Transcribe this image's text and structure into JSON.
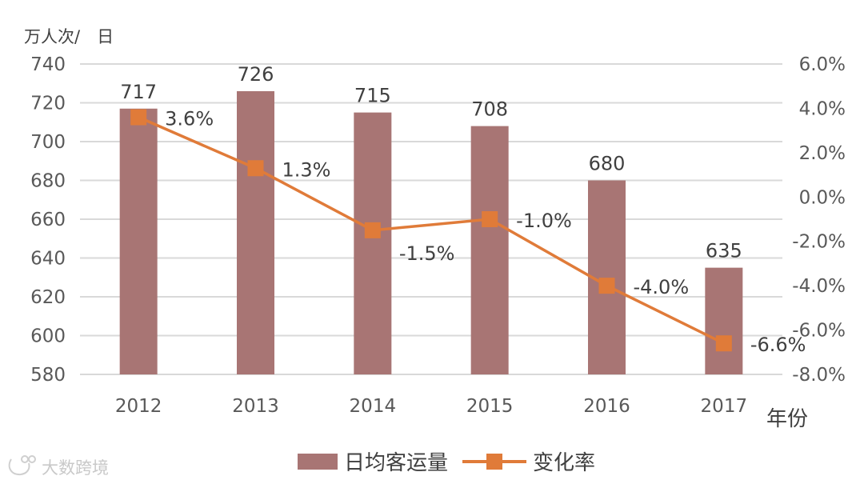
{
  "chart_data": {
    "type": "bar+line",
    "categories": [
      "2012",
      "2013",
      "2014",
      "2015",
      "2016",
      "2017"
    ],
    "series": [
      {
        "name": "日均客运量",
        "type": "bar",
        "axis": "left",
        "values": [
          717,
          726,
          715,
          708,
          680,
          635
        ],
        "labels": [
          "717",
          "726",
          "715",
          "708",
          "680",
          "635"
        ],
        "color": "#a87574"
      },
      {
        "name": "变化率",
        "type": "line",
        "axis": "right",
        "values": [
          3.6,
          1.3,
          -1.5,
          -1.0,
          -4.0,
          -6.6
        ],
        "labels": [
          "3.6%",
          "1.3%",
          "-1.5%",
          "-1.0%",
          "-4.0%",
          "-6.6%"
        ],
        "color": "#e07b39"
      }
    ],
    "ylabel": "万人次/　日",
    "xlabel": "年份",
    "ylim": [
      580,
      740
    ],
    "yticks": [
      580,
      600,
      620,
      640,
      660,
      680,
      700,
      720,
      740
    ],
    "ytick_labels": [
      "580",
      "600",
      "620",
      "640",
      "660",
      "680",
      "700",
      "720",
      "740"
    ],
    "y2lim": [
      -8.0,
      6.0
    ],
    "y2ticks": [
      -8,
      -6,
      -4,
      -2,
      0,
      2,
      4,
      6
    ],
    "y2tick_labels": [
      "-8.0%",
      "-6.0%",
      "-4.0%",
      "-2.0%",
      "0.0%",
      "2.0%",
      "4.0%",
      "6.0%"
    ],
    "grid": true,
    "legend_position": "bottom",
    "gridline_color": "#d9d9d9"
  },
  "watermark": {
    "text": "大数跨境"
  }
}
